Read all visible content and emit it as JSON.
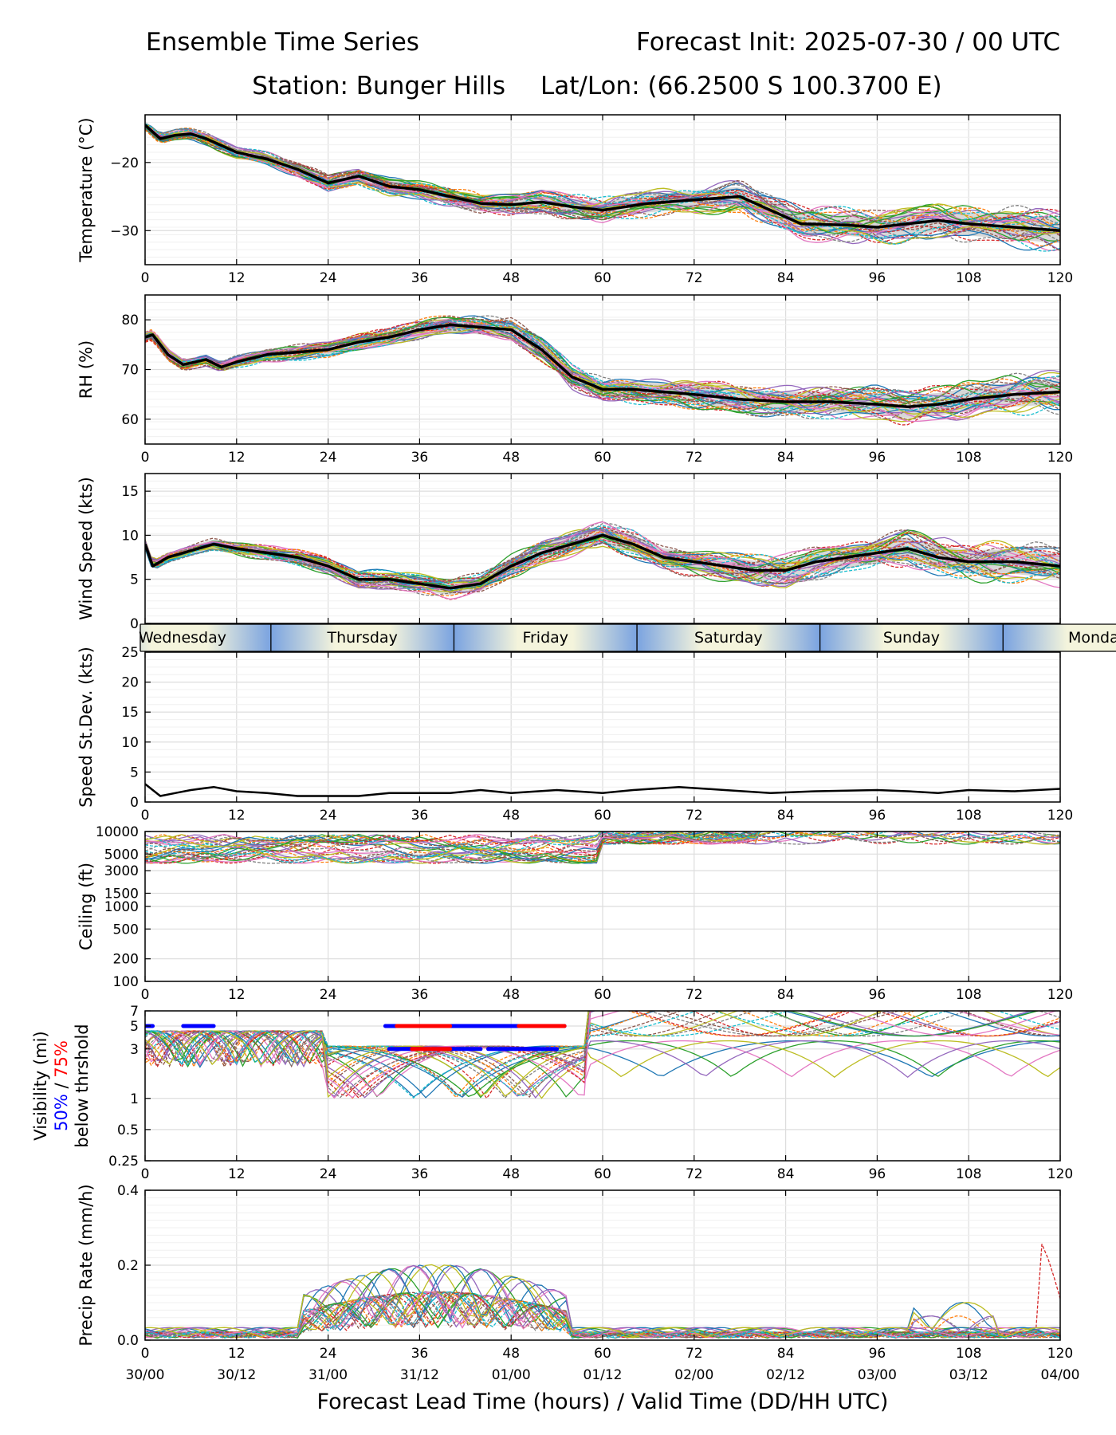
{
  "header": {
    "title_left": "Ensemble Time Series",
    "title_right": "Forecast Init: 2025-07-30 / 00 UTC",
    "station": "Station: Bunger Hills",
    "latlon": "Lat/Lon: (66.2500 S 100.3700 E)"
  },
  "x_axis": {
    "xlabel": "Forecast Lead Time (hours) / Valid Time (DD/HH UTC)",
    "ticks": [
      0,
      12,
      24,
      36,
      48,
      60,
      72,
      84,
      96,
      108,
      120
    ],
    "valid_time_labels": [
      "30/00",
      "30/12",
      "31/00",
      "31/12",
      "01/00",
      "01/12",
      "02/00",
      "02/12",
      "03/00",
      "03/12",
      "04/00"
    ],
    "xlim": [
      0,
      120
    ]
  },
  "day_band": {
    "days": [
      "Wednesday",
      "Thursday",
      "Friday",
      "Saturday",
      "Sunday",
      "Monday"
    ],
    "day_start_hours": [
      -7.5,
      16.5,
      40.5,
      64.5,
      88.5,
      112.5
    ]
  },
  "colors": {
    "member_palette": [
      "#1f77b4",
      "#ff7f0e",
      "#2ca02c",
      "#d62728",
      "#9467bd",
      "#8c564b",
      "#e377c2",
      "#7f7f7f",
      "#bcbd22",
      "#17becf"
    ],
    "mean_line": "#000000",
    "spread_fill": "#c8c8c8",
    "threshold_50": "#0000ff",
    "threshold_75": "#ff0000",
    "grid": "#dddddd"
  },
  "chart_data": [
    {
      "id": "temperature",
      "type": "line",
      "ylabel": "Temperature (°C)",
      "ylim": [
        -35,
        -13
      ],
      "yticks": [
        -20,
        -30
      ],
      "ytick_labels": [
        "−20",
        "−30"
      ],
      "ensemble_members": 30,
      "spread_band": true,
      "series": [
        {
          "name": "",
          "role": "ensemble-mean",
          "x": [
            0,
            2,
            4,
            6,
            8,
            12,
            16,
            20,
            24,
            28,
            32,
            36,
            40,
            44,
            48,
            52,
            56,
            60,
            66,
            72,
            78,
            82,
            86,
            92,
            96,
            100,
            104,
            108,
            114,
            120
          ],
          "y": [
            -14.5,
            -16.5,
            -16.0,
            -15.8,
            -16.5,
            -18.5,
            -19.5,
            -21.0,
            -23.0,
            -22.0,
            -23.5,
            -24.0,
            -25.0,
            -26.0,
            -26.2,
            -25.8,
            -26.5,
            -27.0,
            -26.0,
            -25.5,
            -25.0,
            -27.0,
            -29.0,
            -29.2,
            -29.5,
            -29.0,
            -28.5,
            -29.0,
            -29.5,
            -30.0
          ]
        }
      ]
    },
    {
      "id": "rh",
      "type": "line",
      "ylabel": "RH (%)",
      "ylim": [
        55,
        85
      ],
      "yticks": [
        60,
        70,
        80
      ],
      "ytick_labels": [
        "60",
        "70",
        "80"
      ],
      "ensemble_members": 30,
      "spread_band": true,
      "series": [
        {
          "name": "",
          "role": "ensemble-mean",
          "x": [
            0,
            1,
            3,
            5,
            8,
            10,
            12,
            16,
            20,
            24,
            28,
            32,
            36,
            40,
            44,
            48,
            52,
            56,
            60,
            64,
            68,
            72,
            78,
            84,
            90,
            96,
            100,
            104,
            108,
            114,
            120
          ],
          "y": [
            76.5,
            77.0,
            73.0,
            71.0,
            72.0,
            70.5,
            71.5,
            73.0,
            73.5,
            74.0,
            75.5,
            76.5,
            78.0,
            79.0,
            78.5,
            78.0,
            74.0,
            68.5,
            66.0,
            66.0,
            65.5,
            65.0,
            64.0,
            63.5,
            63.5,
            63.0,
            62.5,
            63.0,
            64.0,
            65.0,
            65.5
          ]
        }
      ]
    },
    {
      "id": "wind-speed",
      "type": "line",
      "ylabel": "Wind Speed (kts)",
      "ylim": [
        0,
        17
      ],
      "yticks": [
        0,
        5,
        10,
        15
      ],
      "ytick_labels": [
        "0",
        "5",
        "10",
        "15"
      ],
      "ensemble_members": 30,
      "spread_band": true,
      "series": [
        {
          "name": "",
          "role": "ensemble-mean",
          "x": [
            0,
            1,
            3,
            5,
            7,
            9,
            12,
            16,
            20,
            24,
            28,
            32,
            36,
            40,
            44,
            48,
            52,
            56,
            60,
            64,
            68,
            72,
            76,
            80,
            84,
            88,
            92,
            96,
            100,
            104,
            108,
            114,
            120
          ],
          "y": [
            9.0,
            6.5,
            7.5,
            8.0,
            8.5,
            9.0,
            8.5,
            8.0,
            7.5,
            6.5,
            5.0,
            5.0,
            4.5,
            4.0,
            4.5,
            6.5,
            8.0,
            9.0,
            10.0,
            9.0,
            7.5,
            7.0,
            6.5,
            6.0,
            6.0,
            7.0,
            7.5,
            8.0,
            8.5,
            7.5,
            7.0,
            7.0,
            6.5
          ]
        }
      ]
    },
    {
      "id": "speed-stdev",
      "type": "line",
      "ylabel": "Speed St.Dev. (kts)",
      "ylim": [
        0,
        25
      ],
      "yticks": [
        0,
        5,
        10,
        15,
        20,
        25
      ],
      "ytick_labels": [
        "0",
        "5",
        "10",
        "15",
        "20",
        "25"
      ],
      "ensemble_members": 0,
      "spread_band": false,
      "series": [
        {
          "name": "",
          "role": "ensemble-mean",
          "x": [
            0,
            2,
            4,
            6,
            9,
            12,
            16,
            20,
            24,
            28,
            32,
            36,
            40,
            44,
            48,
            54,
            60,
            64,
            70,
            76,
            82,
            88,
            96,
            100,
            104,
            108,
            114,
            120
          ],
          "y": [
            3.0,
            1.0,
            1.5,
            2.0,
            2.5,
            1.8,
            1.5,
            1.0,
            1.0,
            1.0,
            1.5,
            1.5,
            1.5,
            2.0,
            1.5,
            2.0,
            1.5,
            2.0,
            2.5,
            2.0,
            1.5,
            1.8,
            2.0,
            1.8,
            1.5,
            2.0,
            1.8,
            2.2
          ]
        }
      ]
    },
    {
      "id": "ceiling",
      "type": "line",
      "ylabel": "Ceiling (ft)",
      "yscale": "log",
      "ylim": [
        100,
        10000
      ],
      "yticks": [
        100,
        200,
        500,
        1000,
        1500,
        3000,
        5000,
        10000
      ],
      "ytick_labels": [
        "100",
        "200",
        "500",
        "1000",
        "1500",
        "3000",
        "5000",
        "10000"
      ],
      "ensemble_members": 30,
      "spread_band": false,
      "series": []
    },
    {
      "id": "visibility",
      "type": "line",
      "ylabel": "Visibility (mi)",
      "ylabel_blue": "50%",
      "ylabel_sep": " / ",
      "ylabel_red": "75%",
      "ylabel_line3": "below thrshold",
      "yscale": "log",
      "ylim": [
        0.25,
        7
      ],
      "yticks": [
        0.25,
        0.5,
        1,
        3,
        5,
        7
      ],
      "ytick_labels": [
        "0.25",
        "0.5",
        "1",
        "3",
        "5",
        "7"
      ],
      "ensemble_members": 30,
      "spread_band": false,
      "threshold_bars": [
        {
          "level": 5,
          "color": "blue",
          "x_start": 0,
          "x_end": 1
        },
        {
          "level": 5,
          "color": "blue",
          "x_start": 5,
          "x_end": 9
        },
        {
          "level": 5,
          "color": "blue",
          "x_start": 31.5,
          "x_end": 55
        },
        {
          "level": 5,
          "color": "red",
          "x_start": 33,
          "x_end": 40
        },
        {
          "level": 5,
          "color": "red",
          "x_start": 49,
          "x_end": 55
        },
        {
          "level": 3,
          "color": "blue",
          "x_start": 32,
          "x_end": 44
        },
        {
          "level": 3,
          "color": "red",
          "x_start": 35,
          "x_end": 40
        },
        {
          "level": 3,
          "color": "blue",
          "x_start": 45,
          "x_end": 54
        }
      ],
      "series": []
    },
    {
      "id": "precip",
      "type": "line",
      "ylabel": "Precip Rate (mm/h)",
      "ylim": [
        0,
        0.4
      ],
      "yticks": [
        0,
        0.2,
        0.4
      ],
      "ytick_labels": [
        "0.0",
        "0.2",
        "0.4"
      ],
      "ensemble_members": 30,
      "spread_band": false,
      "series": []
    }
  ]
}
